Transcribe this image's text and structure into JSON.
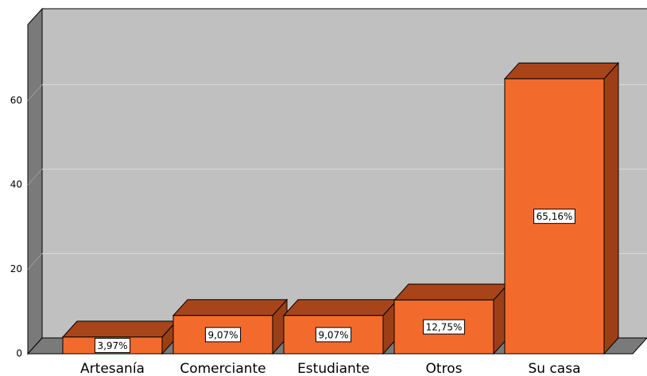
{
  "chart_data": {
    "type": "bar",
    "categories": [
      "Artesanía",
      "Comerciante",
      "Estudiante",
      "Otros",
      "Su casa"
    ],
    "values": [
      3.97,
      9.07,
      9.07,
      12.75,
      65.16
    ],
    "value_labels": [
      "3,97%",
      "9,07%",
      "9,07%",
      "12,75%",
      "65,16%"
    ],
    "color": "#f26b2c",
    "ylim": [
      0,
      78
    ],
    "yticks": [
      0,
      20,
      40,
      60
    ],
    "grid": true
  }
}
